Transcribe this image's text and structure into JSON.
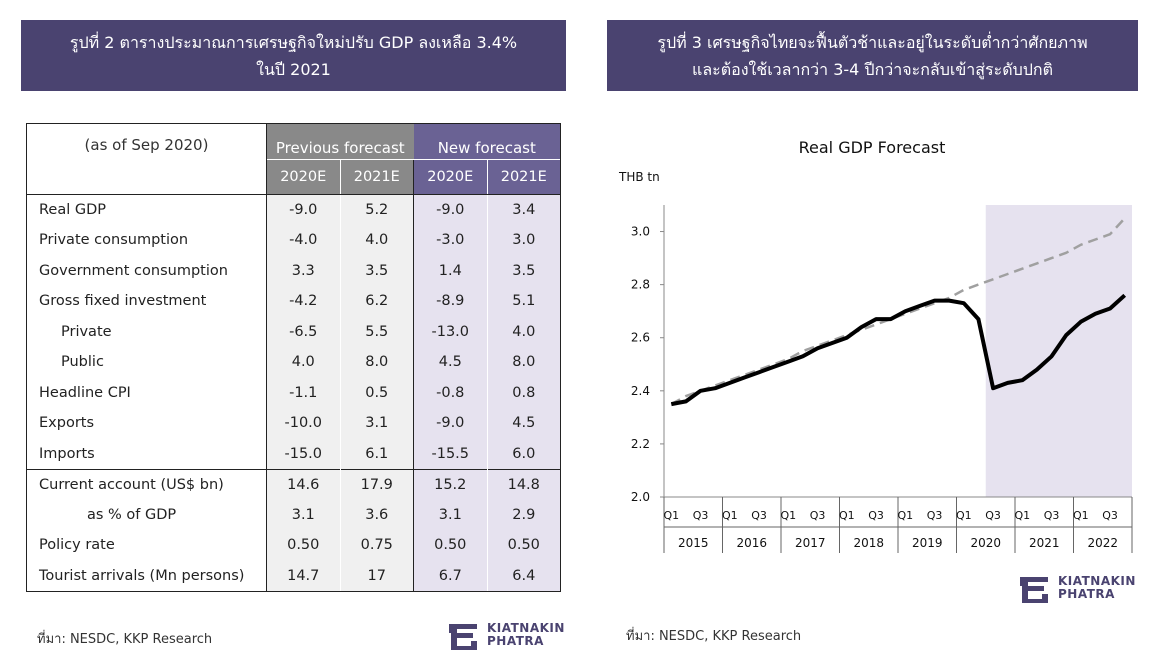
{
  "left_panel": {
    "title_line1": "รูปที่ 2 ตารางประมาณการเศรษฐกิจใหม่ปรับ GDP ลงเหลือ 3.4%",
    "title_line2": "ในปี 2021",
    "table": {
      "note": "(as of Sep 2020)",
      "prev_header": "Previous forecast",
      "new_header": "New forecast",
      "years": [
        "2020E",
        "2021E",
        "2020E",
        "2021E"
      ],
      "rows": [
        {
          "label": "Real GDP",
          "values": [
            "-9.0",
            "5.2",
            "-9.0",
            "3.4"
          ]
        },
        {
          "label": "Private consumption",
          "values": [
            "-4.0",
            "4.0",
            "-3.0",
            "3.0"
          ]
        },
        {
          "label": "Government consumption",
          "values": [
            "3.3",
            "3.5",
            "1.4",
            "3.5"
          ]
        },
        {
          "label": "Gross fixed investment",
          "values": [
            "-4.2",
            "6.2",
            "-8.9",
            "5.1"
          ]
        },
        {
          "label": "Private",
          "values": [
            "-6.5",
            "5.5",
            "-13.0",
            "4.0"
          ]
        },
        {
          "label": "Public",
          "values": [
            "4.0",
            "8.0",
            "4.5",
            "8.0"
          ]
        },
        {
          "label": "Headline CPI",
          "values": [
            "-1.1",
            "0.5",
            "-0.8",
            "0.8"
          ]
        },
        {
          "label": "Exports",
          "values": [
            "-10.0",
            "3.1",
            "-9.0",
            "4.5"
          ]
        },
        {
          "label": "Imports",
          "values": [
            "-15.0",
            "6.1",
            "-15.5",
            "6.0"
          ]
        },
        {
          "label": "Current account (US$ bn)",
          "values": [
            "14.6",
            "17.9",
            "15.2",
            "14.8"
          ]
        },
        {
          "label": "as % of GDP",
          "values": [
            "3.1",
            "3.6",
            "3.1",
            "2.9"
          ]
        },
        {
          "label": "Policy rate",
          "values": [
            "0.50",
            "0.75",
            "0.50",
            "0.50"
          ]
        },
        {
          "label": "Tourist arrivals (Mn persons)",
          "values": [
            "14.7",
            "17",
            "6.7",
            "6.4"
          ]
        }
      ]
    },
    "source": "ที่มา: NESDC, KKP Research",
    "logo_line1": "KIATNAKIN",
    "logo_line2": "PHATRA"
  },
  "right_panel": {
    "title_line1": "รูปที่ 3 เศรษฐกิจไทยจะฟื้นตัวช้าและอยู่ในระดับต่ำกว่าศักยภาพ",
    "title_line2": "และต้องใช้เวลากว่า 3-4 ปีกว่าจะกลับเข้าสู่ระดับปกติ",
    "source": "ที่มา: NESDC, KKP Research",
    "logo_line1": "KIATNAKIN",
    "logo_line2": "PHATRA"
  },
  "chart_data": {
    "type": "line",
    "title": "Real GDP Forecast",
    "ylabel": "THB tn",
    "xlabel": "",
    "ylim": [
      2.0,
      3.1
    ],
    "yticks": [
      "2.0",
      "2.2",
      "2.4",
      "2.6",
      "2.8",
      "3.0"
    ],
    "x": [
      "2015 Q1",
      "2015 Q2",
      "2015 Q3",
      "2015 Q4",
      "2016 Q1",
      "2016 Q2",
      "2016 Q3",
      "2016 Q4",
      "2017 Q1",
      "2017 Q2",
      "2017 Q3",
      "2017 Q4",
      "2018 Q1",
      "2018 Q2",
      "2018 Q3",
      "2018 Q4",
      "2019 Q1",
      "2019 Q2",
      "2019 Q3",
      "2019 Q4",
      "2020 Q1",
      "2020 Q2",
      "2020 Q3",
      "2020 Q4",
      "2021 Q1",
      "2021 Q2",
      "2021 Q3",
      "2021 Q4",
      "2022 Q1",
      "2022 Q2",
      "2022 Q3",
      "2022 Q4"
    ],
    "quarter_labels": [
      "Q1",
      "Q3"
    ],
    "year_labels": [
      "2015",
      "2016",
      "2017",
      "2018",
      "2019",
      "2020",
      "2021",
      "2022"
    ],
    "forecast_shaded_from": "2020 Q3",
    "grid": false,
    "series": [
      {
        "style": "solid",
        "color": "#000000",
        "values": [
          2.35,
          2.36,
          2.4,
          2.41,
          2.43,
          2.45,
          2.47,
          2.49,
          2.51,
          2.53,
          2.56,
          2.58,
          2.6,
          2.64,
          2.67,
          2.67,
          2.7,
          2.72,
          2.74,
          2.74,
          2.73,
          2.67,
          2.41,
          2.43,
          2.44,
          2.48,
          2.53,
          2.61,
          2.66,
          2.69,
          2.71,
          2.76
        ]
      },
      {
        "style": "dashed",
        "color": "#a0a0a0",
        "values": [
          2.35,
          2.38,
          2.4,
          2.42,
          2.44,
          2.46,
          2.48,
          2.5,
          2.52,
          2.55,
          2.57,
          2.59,
          2.61,
          2.63,
          2.65,
          2.67,
          2.69,
          2.71,
          2.73,
          2.75,
          2.78,
          2.8,
          2.82,
          2.84,
          2.86,
          2.88,
          2.9,
          2.92,
          2.95,
          2.97,
          2.99,
          3.05
        ]
      }
    ]
  }
}
